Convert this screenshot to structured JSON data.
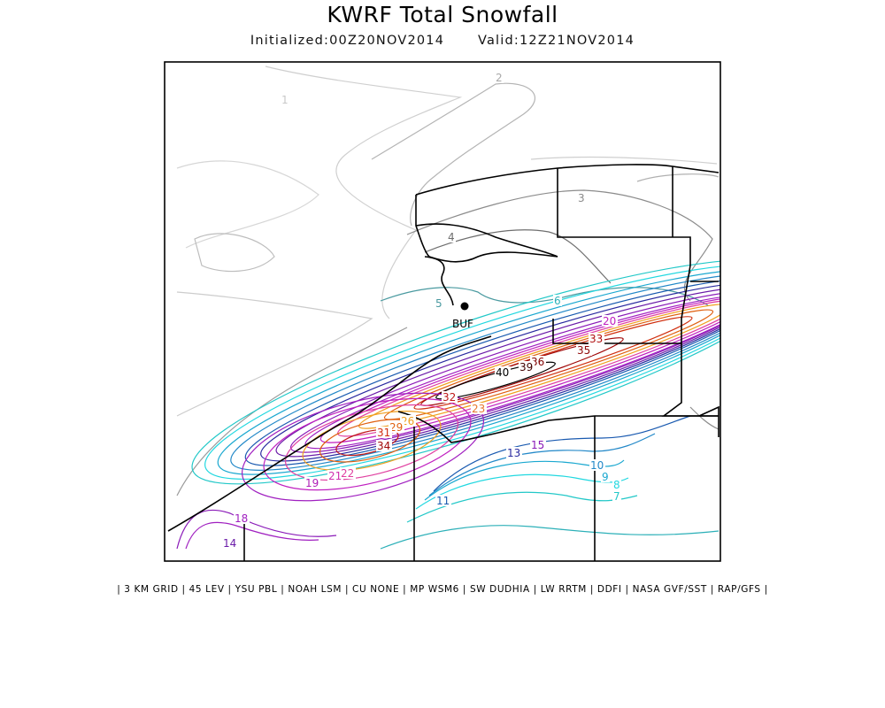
{
  "title": "KWRF Total Snowfall",
  "initialized": "Initialized:00Z20NOV2014",
  "valid": "Valid:12Z21NOV2014",
  "footer": "| 3 KM GRID | 45 LEV | YSU PBL | NOAH LSM | CU NONE | MP WSM6 | SW DUDHIA | LW RRTM | DDFI | NASA GVF/SST | RAP/GFS |",
  "city": {
    "code": "BUF"
  },
  "contour_labels": [
    {
      "value": "1",
      "color": "#c8c8c8"
    },
    {
      "value": "2",
      "color": "#a8a8a8"
    },
    {
      "value": "3",
      "color": "#8a8a8a"
    },
    {
      "value": "4",
      "color": "#6e6e6e"
    },
    {
      "value": "5",
      "color": "#4a9aa0"
    },
    {
      "value": "6",
      "color": "#2cb0b8"
    },
    {
      "value": "7",
      "color": "#22c8c8"
    },
    {
      "value": "8",
      "color": "#22d8e0"
    },
    {
      "value": "9",
      "color": "#1aa8d0"
    },
    {
      "value": "10",
      "color": "#2288c8"
    },
    {
      "value": "11",
      "color": "#1a5ab0"
    },
    {
      "value": "13",
      "color": "#2a2aa0"
    },
    {
      "value": "14",
      "color": "#6a1aa8"
    },
    {
      "value": "15",
      "color": "#8a1ab8"
    },
    {
      "value": "18",
      "color": "#a020c0"
    },
    {
      "value": "19",
      "color": "#b020b8"
    },
    {
      "value": "20",
      "color": "#c020c0"
    },
    {
      "value": "21",
      "color": "#d030b0"
    },
    {
      "value": "22",
      "color": "#e040a0"
    },
    {
      "value": "23",
      "color": "#e87830"
    },
    {
      "value": "26",
      "color": "#f0a020"
    },
    {
      "value": "29",
      "color": "#e06010"
    },
    {
      "value": "31",
      "color": "#d03010"
    },
    {
      "value": "32",
      "color": "#c01818"
    },
    {
      "value": "33",
      "color": "#b01010"
    },
    {
      "value": "34",
      "color": "#a00808"
    },
    {
      "value": "35",
      "color": "#900808"
    },
    {
      "value": "36",
      "color": "#800000"
    },
    {
      "value": "39",
      "color": "#400000"
    },
    {
      "value": "40",
      "color": "#000000"
    }
  ]
}
